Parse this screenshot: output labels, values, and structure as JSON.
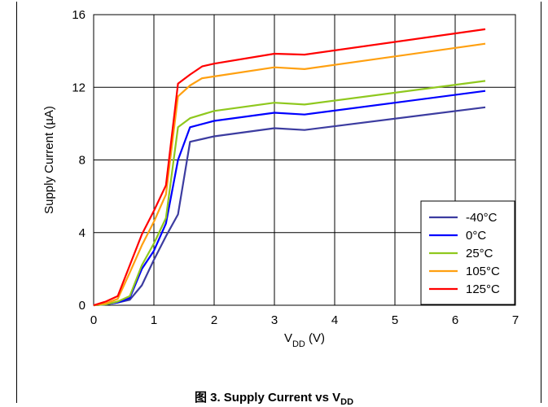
{
  "chart_data": {
    "type": "line",
    "xlabel_main": "V",
    "xlabel_sub": "DD",
    "xlabel_unit": " (V)",
    "ylabel": "Supply Current (µA)",
    "xlim": [
      0,
      7
    ],
    "ylim": [
      0,
      16
    ],
    "xticks": [
      "0",
      "1",
      "2",
      "3",
      "4",
      "5",
      "6",
      "7"
    ],
    "yticks": [
      "0",
      "4",
      "8",
      "12",
      "16"
    ],
    "grid": true,
    "legend_position": "bottom-right",
    "series": [
      {
        "name": "-40°C",
        "color": "#3c3ca0",
        "x": [
          0,
          0.2,
          0.4,
          0.6,
          0.8,
          1.0,
          1.2,
          1.4,
          1.6,
          2.0,
          3.0,
          3.5,
          6.5
        ],
        "y": [
          0,
          0.05,
          0.15,
          0.3,
          1.1,
          2.5,
          3.8,
          5.0,
          9.0,
          9.3,
          9.75,
          9.65,
          10.9
        ]
      },
      {
        "name": "0°C",
        "color": "#0000ff",
        "x": [
          0,
          0.2,
          0.4,
          0.6,
          0.8,
          1.0,
          1.2,
          1.4,
          1.6,
          2.0,
          3.0,
          3.5,
          6.5
        ],
        "y": [
          0,
          0.05,
          0.15,
          0.4,
          2.0,
          3.0,
          4.5,
          8.0,
          9.8,
          10.15,
          10.6,
          10.5,
          11.8
        ]
      },
      {
        "name": "25°C",
        "color": "#8fc81e",
        "x": [
          0,
          0.2,
          0.4,
          0.6,
          0.8,
          1.0,
          1.2,
          1.4,
          1.6,
          2.0,
          3.0,
          3.5,
          6.5
        ],
        "y": [
          0,
          0.05,
          0.2,
          0.5,
          2.2,
          3.4,
          4.8,
          9.8,
          10.3,
          10.7,
          11.15,
          11.05,
          12.35
        ]
      },
      {
        "name": "105°C",
        "color": "#ffa010",
        "x": [
          0,
          0.2,
          0.4,
          0.6,
          0.8,
          1.0,
          1.2,
          1.4,
          1.6,
          1.8,
          2.0,
          3.0,
          3.5,
          6.5
        ],
        "y": [
          0,
          0.1,
          0.35,
          1.8,
          3.3,
          4.6,
          6.1,
          11.5,
          12.1,
          12.5,
          12.6,
          13.1,
          13.0,
          14.4
        ]
      },
      {
        "name": "125°C",
        "color": "#ff0000",
        "x": [
          0,
          0.2,
          0.4,
          0.6,
          0.8,
          1.0,
          1.2,
          1.4,
          1.6,
          1.8,
          2.0,
          3.0,
          3.5,
          6.5
        ],
        "y": [
          0,
          0.2,
          0.5,
          2.2,
          3.9,
          5.2,
          6.6,
          12.2,
          12.7,
          13.15,
          13.3,
          13.85,
          13.8,
          15.2
        ]
      }
    ]
  },
  "caption": {
    "prefix": "图 3. Supply Current vs V",
    "sub": "DD"
  }
}
